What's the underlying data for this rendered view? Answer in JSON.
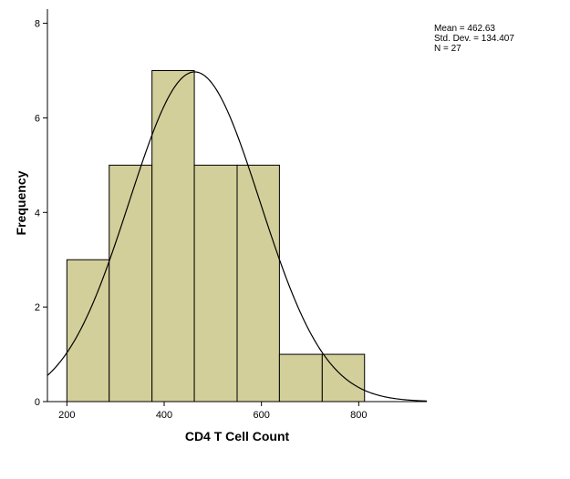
{
  "chart_data": {
    "type": "bar",
    "title": "",
    "xlabel": "CD4 T Cell Count",
    "ylabel": "Frequency",
    "xlim": [
      160,
      940
    ],
    "ylim": [
      0,
      8.3
    ],
    "x_ticks": [
      200,
      400,
      600,
      800
    ],
    "y_ticks": [
      0,
      2,
      4,
      6,
      8
    ],
    "bins": [
      {
        "start": 200,
        "end": 287,
        "value": 3
      },
      {
        "start": 287,
        "end": 375,
        "value": 5
      },
      {
        "start": 375,
        "end": 462,
        "value": 7
      },
      {
        "start": 462,
        "end": 550,
        "value": 5
      },
      {
        "start": 550,
        "end": 637,
        "value": 5
      },
      {
        "start": 637,
        "end": 725,
        "value": 1
      },
      {
        "start": 725,
        "end": 812,
        "value": 1
      }
    ],
    "normal_curve": {
      "mean": 462.63,
      "std_dev": 134.407,
      "n": 27
    },
    "bar_color": "#d3cf9a",
    "grid": false
  },
  "stats": {
    "mean_label": "Mean = 462.63",
    "std_label": "Std. Dev. = 134.407",
    "n_label": "N = 27"
  }
}
